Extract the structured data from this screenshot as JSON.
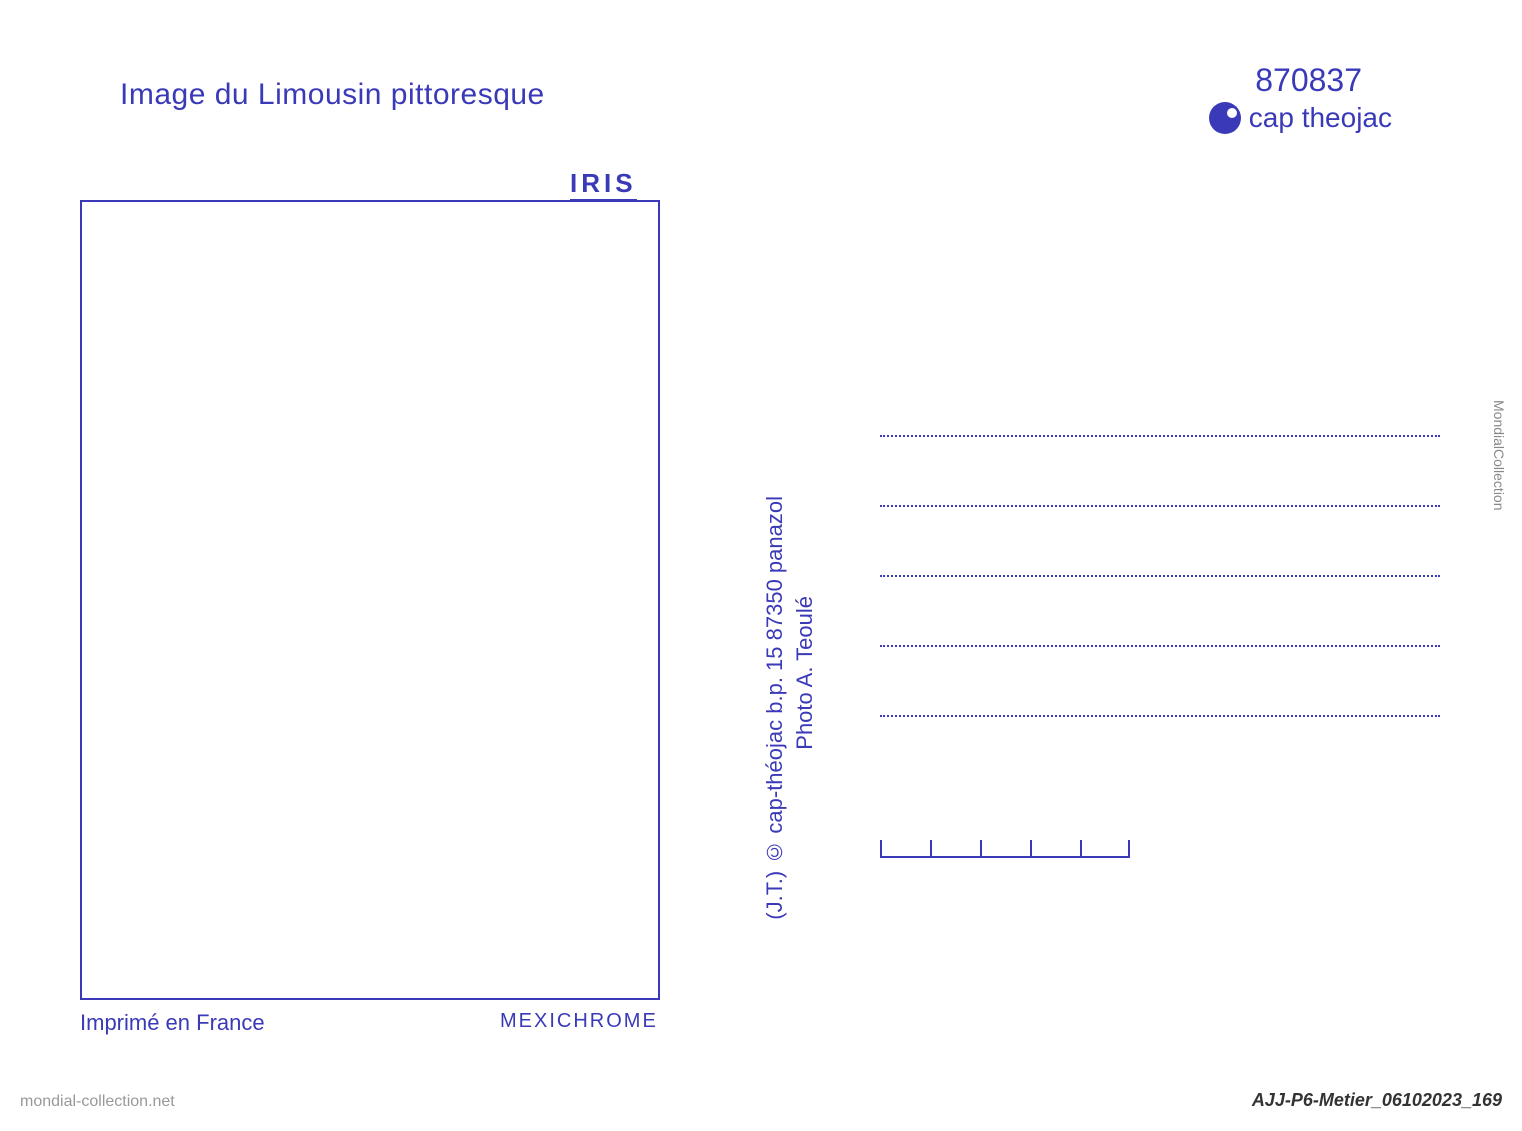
{
  "postcard": {
    "title": "Image du Limousin pittoresque",
    "reference_number": "870837",
    "logo_text": "cap theojac",
    "iris_label": "IRIS",
    "publisher_line": "(J.T.) © cap-théojac b.p. 15 87350 panazol",
    "photo_credit": "Photo A. Teoulé",
    "imprime": "Imprimé en France",
    "mexichrome": "MEXICHROME",
    "colors": {
      "primary": "#3a3ab8",
      "background": "#ffffff"
    },
    "address_line_count": 5,
    "postal_box_count": 5
  },
  "watermarks": {
    "left": "mondial-collection.net",
    "right": "AJJ-P6-Metier_06102023_169",
    "side": "MondialCollection"
  }
}
